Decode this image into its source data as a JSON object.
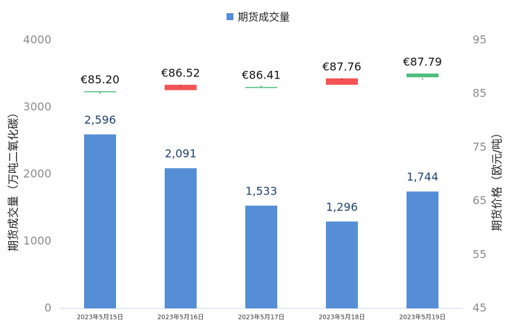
{
  "chart_data": {
    "type": "bar",
    "categories": [
      "2023年5月15日",
      "2023年5月16日",
      "2023年5月17日",
      "2023年5月18日",
      "2023年5月19日"
    ],
    "series": [
      {
        "name": "期货成交量",
        "color": "#558ed5",
        "values": [
          2596,
          2091,
          1533,
          1296,
          1744
        ],
        "value_labels": [
          "2,596",
          "2,091",
          "1,533",
          "1,296",
          "1,744"
        ]
      }
    ],
    "price": {
      "axis": "y2",
      "values": [
        85.2,
        86.52,
        86.41,
        87.76,
        87.79
      ],
      "value_labels": [
        "€85.20",
        "€86.52",
        "€86.41",
        "€87.76",
        "€87.79"
      ],
      "open": [
        85.5,
        86.7,
        86.3,
        87.9,
        88.1
      ],
      "close": [
        85.5,
        85.7,
        86.3,
        86.7,
        88.8
      ],
      "up_color": "#4dbd7d",
      "down_color": "#f45454"
    },
    "ylabel": "期货成交量（万吨二氧化碳）",
    "y2label": "期货价格（欧元/吨）",
    "ylim": [
      0,
      4000
    ],
    "yticks": [
      0,
      1000,
      2000,
      3000,
      4000
    ],
    "y2lim": [
      45,
      95
    ],
    "y2ticks": [
      45,
      55,
      65,
      75,
      85,
      95
    ],
    "grid": false
  }
}
